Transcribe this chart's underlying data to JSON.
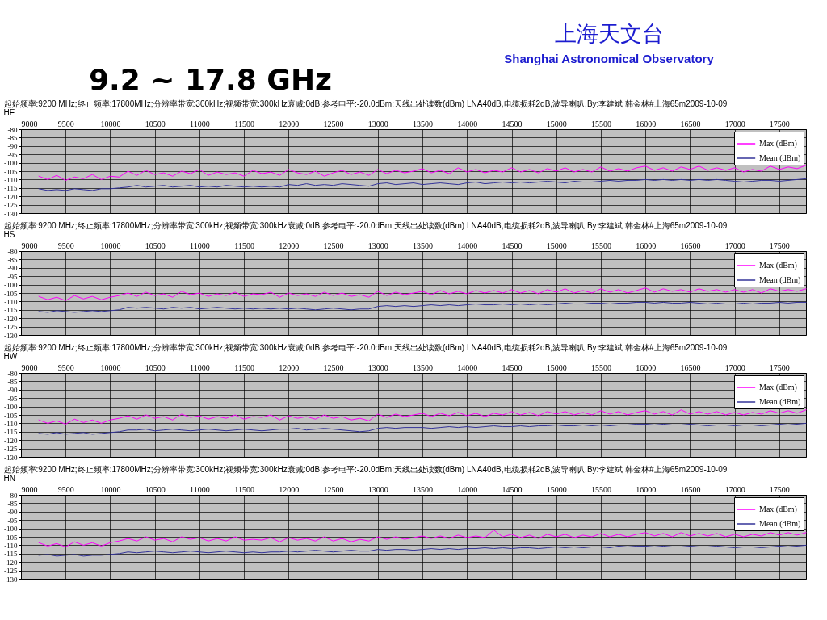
{
  "chart_data": [
    {
      "type": "other",
      "title": "9.2 ~ 17.8 GHz",
      "annotations": [
        "上海天文台",
        "Shanghai Astronomical Observatory"
      ]
    },
    {
      "type": "line",
      "title": "起始频率:9200 MHz;终止频率:17800MHz;分辨率带宽:300kHz;视频带宽:300kHz衰减:0dB;参考电平:-20.0dBm;天线出处读数(dBm) LNA40dB,电缆损耗2dB,波导喇叭,By:李建斌 韩金林#上海65m2009-10-09",
      "subtitle": "HE",
      "x": [
        9200,
        9300,
        9400,
        9500,
        9600,
        9700,
        9800,
        9900,
        10000,
        10100,
        10200,
        10300,
        10400,
        10500,
        10600,
        10700,
        10800,
        10900,
        11000,
        11100,
        11200,
        11300,
        11400,
        11500,
        11600,
        11700,
        11800,
        11900,
        12000,
        12100,
        12200,
        12300,
        12400,
        12500,
        12600,
        12700,
        12800,
        12900,
        13000,
        13100,
        13200,
        13300,
        13400,
        13500,
        13600,
        13700,
        13800,
        13900,
        14000,
        14100,
        14200,
        14300,
        14400,
        14500,
        14600,
        14700,
        14800,
        14900,
        15000,
        15100,
        15200,
        15300,
        15400,
        15500,
        15600,
        15700,
        15800,
        15900,
        16000,
        16100,
        16200,
        16300,
        16400,
        16500,
        16600,
        16700,
        16800,
        16900,
        17000,
        17100,
        17200,
        17300,
        17400,
        17500,
        17600,
        17700,
        17800
      ],
      "series": [
        {
          "name": "Max (dBm)",
          "color": "#ff00ff",
          "values": [
            -108,
            -110,
            -107.5,
            -110.5,
            -108.5,
            -109.5,
            -107,
            -110,
            -108,
            -108.5,
            -105,
            -107.5,
            -104.5,
            -107,
            -106,
            -108,
            -105,
            -106.5,
            -104,
            -107.5,
            -105.5,
            -107,
            -106,
            -108,
            -104.5,
            -106.5,
            -105.5,
            -107.5,
            -104,
            -106,
            -107,
            -105,
            -108,
            -106,
            -104.5,
            -107,
            -105.5,
            -107.5,
            -104,
            -106.5,
            -104.5,
            -106,
            -105,
            -103.5,
            -106,
            -104.5,
            -106.5,
            -103,
            -105.5,
            -104,
            -106,
            -104.5,
            -105.5,
            -103,
            -105.5,
            -104,
            -106,
            -103.5,
            -105,
            -103,
            -105.5,
            -104,
            -105.5,
            -102.5,
            -105,
            -103.5,
            -105,
            -103,
            -102,
            -104.5,
            -103,
            -105,
            -102.5,
            -104,
            -102,
            -104.5,
            -103,
            -104.5,
            -103,
            -105.5,
            -104,
            -105,
            -102,
            -104,
            -102.5,
            -103.5,
            -101.5
          ]
        },
        {
          "name": "Mean (dBm)",
          "color": "#333399",
          "values": [
            -115.5,
            -116.5,
            -116,
            -116.5,
            -115.5,
            -116,
            -116.5,
            -115.5,
            -115.5,
            -115,
            -114.5,
            -113.5,
            -114.5,
            -114,
            -113.5,
            -114.5,
            -114,
            -113.5,
            -114.5,
            -114,
            -114.5,
            -113.5,
            -114,
            -114.5,
            -114,
            -114.5,
            -114,
            -114.5,
            -113,
            -113.5,
            -112.5,
            -113.5,
            -113,
            -113.5,
            -112.5,
            -113,
            -113.5,
            -114,
            -112.5,
            -112,
            -113,
            -112.5,
            -112,
            -113,
            -112.5,
            -112,
            -112.5,
            -113,
            -112,
            -111.5,
            -112.5,
            -112,
            -111.5,
            -112,
            -111.5,
            -112,
            -111.5,
            -111,
            -111.5,
            -112,
            -111,
            -111.5,
            -111.5,
            -111,
            -110.5,
            -111,
            -110.5,
            -110.5,
            -110,
            -110.5,
            -110,
            -110.5,
            -110,
            -110.5,
            -110,
            -110.5,
            -110,
            -110.5,
            -111,
            -111.5,
            -111,
            -110.5,
            -110.5,
            -111,
            -110.5,
            -110,
            -109.5
          ]
        }
      ],
      "xlim": [
        9000,
        17800
      ],
      "xticks": [
        9000,
        9500,
        10000,
        10500,
        11000,
        11500,
        12000,
        12500,
        13000,
        13500,
        14000,
        14500,
        15000,
        15500,
        16000,
        16500,
        17000,
        17500
      ],
      "ylim": [
        -130,
        -80
      ],
      "yticks": [
        -130,
        -125,
        -120,
        -115,
        -110,
        -105,
        -100,
        -95,
        -90,
        -85,
        -80
      ],
      "grid": true,
      "legend": "top right"
    },
    {
      "type": "line",
      "title": "起始频率:9200 MHz;终止频率:17800MHz;分辨率带宽:300kHz;视频带宽:300kHz衰减:0dB;参考电平:-20.0dBm;天线出处读数(dBm) LNA40dB,电缆损耗2dB,波导喇叭,By:李建斌 韩金林#上海65m2009-10-09",
      "subtitle": "HS",
      "x": [
        9200,
        9300,
        9400,
        9500,
        9600,
        9700,
        9800,
        9900,
        10000,
        10100,
        10200,
        10300,
        10400,
        10500,
        10600,
        10700,
        10800,
        10900,
        11000,
        11100,
        11200,
        11300,
        11400,
        11500,
        11600,
        11700,
        11800,
        11900,
        12000,
        12100,
        12200,
        12300,
        12400,
        12500,
        12600,
        12700,
        12800,
        12900,
        13000,
        13100,
        13200,
        13300,
        13400,
        13500,
        13600,
        13700,
        13800,
        13900,
        14000,
        14100,
        14200,
        14300,
        14400,
        14500,
        14600,
        14700,
        14800,
        14900,
        15000,
        15100,
        15200,
        15300,
        15400,
        15500,
        15600,
        15700,
        15800,
        15900,
        16000,
        16100,
        16200,
        16300,
        16400,
        16500,
        16600,
        16700,
        16800,
        16900,
        17000,
        17100,
        17200,
        17300,
        17400,
        17500,
        17600,
        17700,
        17800
      ],
      "series": [
        {
          "name": "Max (dBm)",
          "color": "#ff00ff",
          "values": [
            -107,
            -109,
            -107.5,
            -109.5,
            -106.5,
            -108.5,
            -107,
            -109,
            -107.5,
            -106.5,
            -105,
            -107,
            -104.5,
            -106.5,
            -105.5,
            -107.5,
            -104,
            -106,
            -105,
            -107,
            -105.5,
            -106.5,
            -104.5,
            -107,
            -105.5,
            -106,
            -104.5,
            -107.5,
            -105,
            -106.5,
            -105.5,
            -107,
            -104.5,
            -106.5,
            -105,
            -107,
            -106,
            -107.5,
            -104,
            -106.5,
            -104.5,
            -106,
            -105,
            -104,
            -106,
            -103.5,
            -105.5,
            -104,
            -105.5,
            -103.5,
            -105,
            -103.5,
            -105,
            -103,
            -105,
            -103.5,
            -105.5,
            -103,
            -104.5,
            -102.5,
            -105,
            -103.5,
            -105,
            -102.5,
            -104.5,
            -103,
            -105,
            -103.5,
            -102,
            -104.5,
            -102.5,
            -104,
            -103,
            -104.5,
            -102.5,
            -104,
            -103,
            -104.5,
            -103,
            -104.5,
            -103,
            -105,
            -102.5,
            -104,
            -103,
            -104,
            -102.5
          ]
        },
        {
          "name": "Mean (dBm)",
          "color": "#333399",
          "values": [
            -116,
            -116.5,
            -115.5,
            -116,
            -116.5,
            -116,
            -115.5,
            -116,
            -115.5,
            -115,
            -113.5,
            -114,
            -113.5,
            -114,
            -114.5,
            -113.5,
            -114,
            -113.5,
            -114.5,
            -114,
            -113.5,
            -114,
            -114.5,
            -114,
            -114.5,
            -114,
            -114.5,
            -114,
            -114.5,
            -114,
            -114.5,
            -115,
            -114.5,
            -114,
            -114.5,
            -115,
            -114.5,
            -114.5,
            -113,
            -112.5,
            -113,
            -112.5,
            -113,
            -112.5,
            -112,
            -112.5,
            -112,
            -112.5,
            -112,
            -111.5,
            -112,
            -112,
            -111.5,
            -112,
            -111.5,
            -112,
            -111.5,
            -112,
            -111.5,
            -111,
            -111.5,
            -111.5,
            -111,
            -111,
            -111.5,
            -111,
            -111,
            -110.5,
            -110.5,
            -111,
            -110.5,
            -111,
            -111,
            -110.5,
            -111,
            -111.5,
            -111,
            -111.5,
            -111.5,
            -111,
            -111.5,
            -111,
            -111,
            -110.5,
            -111,
            -110.5,
            -110.5
          ]
        }
      ],
      "xlim": [
        9000,
        17800
      ],
      "xticks": [
        9000,
        9500,
        10000,
        10500,
        11000,
        11500,
        12000,
        12500,
        13000,
        13500,
        14000,
        14500,
        15000,
        15500,
        16000,
        16500,
        17000,
        17500
      ],
      "ylim": [
        -130,
        -80
      ],
      "yticks": [
        -130,
        -125,
        -120,
        -115,
        -110,
        -105,
        -100,
        -95,
        -90,
        -85,
        -80
      ],
      "grid": true,
      "legend": "top right"
    },
    {
      "type": "line",
      "title": "起始频率:9200 MHz;终止频率:17800MHz;分辨率带宽:300kHz;视频带宽:300kHz衰减:0dB;参考电平:-20.0dBm;天线出处读数(dBm) LNA40dB,电缆损耗2dB,波导喇叭,By:李建斌 韩金林#上海65m2009-10-09",
      "subtitle": "HW",
      "x": [
        9200,
        9300,
        9400,
        9500,
        9600,
        9700,
        9800,
        9900,
        10000,
        10100,
        10200,
        10300,
        10400,
        10500,
        10600,
        10700,
        10800,
        10900,
        11000,
        11100,
        11200,
        11300,
        11400,
        11500,
        11600,
        11700,
        11800,
        11900,
        12000,
        12100,
        12200,
        12300,
        12400,
        12500,
        12600,
        12700,
        12800,
        12900,
        13000,
        13100,
        13200,
        13300,
        13400,
        13500,
        13600,
        13700,
        13800,
        13900,
        14000,
        14100,
        14200,
        14300,
        14400,
        14500,
        14600,
        14700,
        14800,
        14900,
        15000,
        15100,
        15200,
        15300,
        15400,
        15500,
        15600,
        15700,
        15800,
        15900,
        16000,
        16100,
        16200,
        16300,
        16400,
        16500,
        16600,
        16700,
        16800,
        16900,
        17000,
        17100,
        17200,
        17300,
        17400,
        17500,
        17600,
        17700,
        17800
      ],
      "series": [
        {
          "name": "Max (dBm)",
          "color": "#ff00ff",
          "values": [
            -108,
            -110,
            -108.5,
            -110.5,
            -107.5,
            -109.5,
            -108,
            -110,
            -108,
            -107,
            -105.5,
            -107.5,
            -105,
            -107,
            -106,
            -108,
            -104.5,
            -106.5,
            -105.5,
            -107.5,
            -106,
            -107,
            -105,
            -107.5,
            -106,
            -106.5,
            -105,
            -108,
            -105.5,
            -107,
            -106,
            -107.5,
            -105,
            -107,
            -106,
            -108,
            -107,
            -108.5,
            -104.5,
            -106.5,
            -104.5,
            -106,
            -105,
            -104,
            -106,
            -104,
            -105.5,
            -103.5,
            -105.5,
            -104,
            -106,
            -104,
            -105,
            -103,
            -105,
            -103.5,
            -105.5,
            -103,
            -104.5,
            -103,
            -105,
            -103.5,
            -105,
            -102.5,
            -104.5,
            -103,
            -105,
            -103.5,
            -102.5,
            -104.5,
            -103,
            -105,
            -102,
            -104.5,
            -103,
            -104.5,
            -103,
            -105,
            -103.5,
            -105,
            -103.5,
            -104.5,
            -102.5,
            -104,
            -102.5,
            -104,
            -102
          ]
        },
        {
          "name": "Mean (dBm)",
          "color": "#333399",
          "values": [
            -116,
            -116.5,
            -115.5,
            -116.5,
            -116,
            -115.5,
            -116.5,
            -116,
            -115.5,
            -115,
            -114,
            -114,
            -113.5,
            -114.5,
            -114,
            -113.5,
            -114,
            -114.5,
            -114,
            -113.5,
            -114,
            -114.5,
            -114,
            -113.5,
            -114,
            -114.5,
            -114,
            -113.5,
            -113.5,
            -113,
            -114,
            -113.5,
            -113,
            -113.5,
            -114,
            -114.5,
            -115,
            -114.5,
            -113,
            -112.5,
            -113,
            -112.5,
            -112.5,
            -112.5,
            -113,
            -112.5,
            -112,
            -112.5,
            -112,
            -112.5,
            -112,
            -111.5,
            -112,
            -112,
            -111.5,
            -112,
            -111.5,
            -111.5,
            -111,
            -111.5,
            -111.5,
            -111,
            -111.5,
            -111,
            -111.5,
            -111,
            -111,
            -110.5,
            -110.5,
            -111,
            -110.5,
            -111,
            -111,
            -110.5,
            -111,
            -111.5,
            -111,
            -111,
            -111.5,
            -111,
            -111,
            -111.5,
            -111,
            -110.5,
            -111,
            -110.5,
            -110
          ]
        }
      ],
      "xlim": [
        9000,
        17800
      ],
      "xticks": [
        9000,
        9500,
        10000,
        10500,
        11000,
        11500,
        12000,
        12500,
        13000,
        13500,
        14000,
        14500,
        15000,
        15500,
        16000,
        16500,
        17000,
        17500
      ],
      "ylim": [
        -130,
        -80
      ],
      "yticks": [
        -130,
        -125,
        -120,
        -115,
        -110,
        -105,
        -100,
        -95,
        -90,
        -85,
        -80
      ],
      "grid": true,
      "legend": "top right"
    },
    {
      "type": "line",
      "title": "起始频率:9200 MHz;终止频率:17800MHz;分辨率带宽:300kHz;视频带宽:300kHz衰减:0dB;参考电平:-20.0dBm;天线出处读数(dBm) LNA40dB,电缆损耗2dB,波导喇叭,By:李建斌 韩金林#上海65m2009-10-09",
      "subtitle": "HN",
      "x": [
        9200,
        9300,
        9400,
        9500,
        9600,
        9700,
        9800,
        9900,
        10000,
        10100,
        10200,
        10300,
        10400,
        10500,
        10600,
        10700,
        10800,
        10900,
        11000,
        11100,
        11200,
        11300,
        11400,
        11500,
        11600,
        11700,
        11800,
        11900,
        12000,
        12100,
        12200,
        12300,
        12400,
        12500,
        12600,
        12700,
        12800,
        12900,
        13000,
        13100,
        13200,
        13300,
        13400,
        13500,
        13600,
        13700,
        13800,
        13900,
        14000,
        14100,
        14200,
        14300,
        14400,
        14500,
        14600,
        14700,
        14800,
        14900,
        15000,
        15100,
        15200,
        15300,
        15400,
        15500,
        15600,
        15700,
        15800,
        15900,
        16000,
        16100,
        16200,
        16300,
        16400,
        16500,
        16600,
        16700,
        16800,
        16900,
        17000,
        17100,
        17200,
        17300,
        17400,
        17500,
        17600,
        17700,
        17800
      ],
      "series": [
        {
          "name": "Max (dBm)",
          "color": "#ff00ff",
          "values": [
            -108.5,
            -110.5,
            -109,
            -111,
            -108,
            -110,
            -108.5,
            -110.5,
            -108.5,
            -107.5,
            -106,
            -107.5,
            -105,
            -107,
            -106,
            -108,
            -105,
            -106.5,
            -105.5,
            -107.5,
            -106,
            -107.5,
            -105,
            -107,
            -106.5,
            -107,
            -105.5,
            -108,
            -105.5,
            -107,
            -106,
            -107.5,
            -105,
            -107.5,
            -106,
            -108,
            -106.5,
            -107.5,
            -105,
            -106.5,
            -105,
            -106.5,
            -105.5,
            -104.5,
            -106,
            -104.5,
            -106,
            -104,
            -105.5,
            -104.5,
            -105.5,
            -101,
            -105,
            -103.5,
            -105.5,
            -104,
            -106,
            -103.5,
            -105,
            -103.5,
            -105.5,
            -104,
            -105,
            -103,
            -105,
            -103.5,
            -105,
            -103.5,
            -102.5,
            -104.5,
            -103,
            -105,
            -102.5,
            -104.5,
            -103,
            -104.5,
            -103,
            -105,
            -103.5,
            -105,
            -103.5,
            -104.5,
            -102.5,
            -104,
            -102.5,
            -104,
            -102.5
          ]
        },
        {
          "name": "Mean (dBm)",
          "color": "#333399",
          "values": [
            -116,
            -115.5,
            -116.5,
            -116,
            -115.5,
            -116.5,
            -116,
            -116,
            -115.5,
            -115,
            -114,
            -114.5,
            -114,
            -113.5,
            -114,
            -114.5,
            -114,
            -113.5,
            -114,
            -114.5,
            -114,
            -113.5,
            -114,
            -114.5,
            -114,
            -114.5,
            -114,
            -114,
            -113.5,
            -114,
            -113.5,
            -113,
            -113.5,
            -114,
            -113.5,
            -113,
            -113.5,
            -113.5,
            -112.5,
            -113,
            -112.5,
            -112.5,
            -113,
            -112.5,
            -112,
            -112.5,
            -112,
            -112.5,
            -112,
            -112,
            -111.5,
            -112,
            -111.5,
            -112,
            -111.5,
            -111.5,
            -112,
            -111.5,
            -111,
            -111.5,
            -111,
            -111.5,
            -111,
            -111,
            -111.5,
            -110.5,
            -111,
            -110.5,
            -110.5,
            -111,
            -110.5,
            -111,
            -111,
            -110.5,
            -111,
            -111,
            -110.5,
            -111,
            -111.5,
            -111,
            -111,
            -111.5,
            -111,
            -110.5,
            -111,
            -110.5,
            -110
          ]
        }
      ],
      "xlim": [
        9000,
        17800
      ],
      "xticks": [
        9000,
        9500,
        10000,
        10500,
        11000,
        11500,
        12000,
        12500,
        13000,
        13500,
        14000,
        14500,
        15000,
        15500,
        16000,
        16500,
        17000,
        17500
      ],
      "ylim": [
        -130,
        -80
      ],
      "yticks": [
        -130,
        -125,
        -120,
        -115,
        -110,
        -105,
        -100,
        -95,
        -90,
        -85,
        -80
      ],
      "grid": true,
      "legend": "top right"
    }
  ]
}
